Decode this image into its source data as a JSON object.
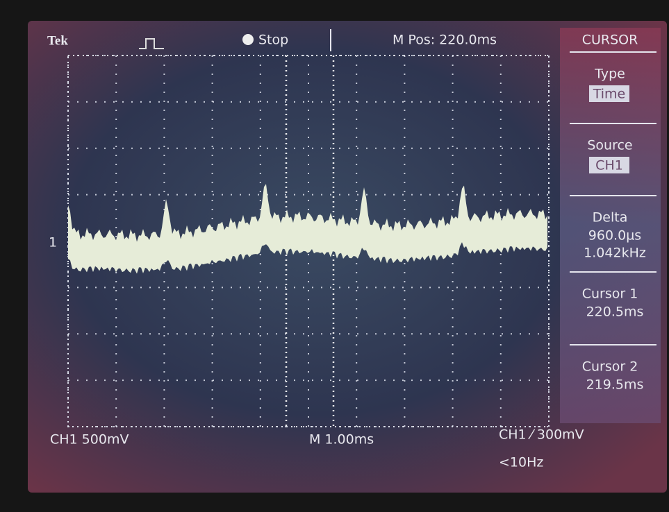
{
  "header": {
    "brand": "Tek",
    "state": "Stop",
    "position": "M Pos: 220.0ms"
  },
  "menu": {
    "title": "CURSOR",
    "items": [
      {
        "label": "Type",
        "value": "Time"
      },
      {
        "label": "Source",
        "value": "CH1"
      },
      {
        "label": "Delta",
        "lines": [
          "960.0µs",
          "1.042kHz"
        ]
      },
      {
        "label": "Cursor 1",
        "lines": [
          "220.5ms"
        ]
      },
      {
        "label": "Cursor 2",
        "lines": [
          "219.5ms"
        ]
      }
    ]
  },
  "channel_marker": "1",
  "footer": {
    "channel_scale": "CH1  500mV",
    "timebase": "M 1.00ms",
    "trigger": "CH1 ⁄ 300mV",
    "trigger_freq": "<10Hz"
  }
}
